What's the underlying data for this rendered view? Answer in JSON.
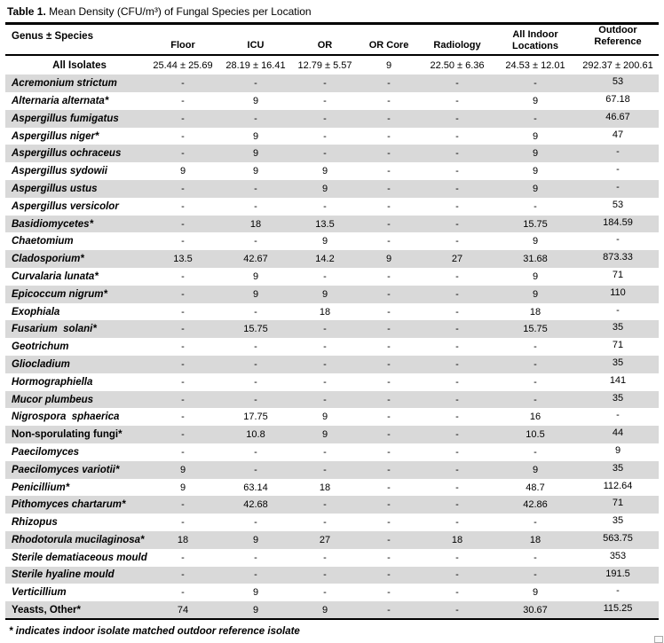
{
  "title": {
    "label": "Table 1.",
    "text": " Mean Density (CFU/m³) of Fungal Species per Location"
  },
  "colors": {
    "stripe": "#D9D9D9",
    "rule": "#000000"
  },
  "table": {
    "columns": [
      "Genus ± Species",
      "Floor",
      "ICU",
      "OR",
      "OR Core",
      "Radiology",
      "All Indoor Locations",
      "Outdoor Reference"
    ],
    "summary_row": {
      "name": "All Isolates",
      "values": [
        "25.44 ± 25.69",
        "28.19 ± 16.41",
        "12.79 ± 5.57",
        "9",
        "22.50 ± 6.36",
        "24.53 ± 12.01",
        "292.37 ± 200.61"
      ]
    },
    "rows": [
      {
        "name": "Acremonium strictum",
        "italic": true,
        "values": [
          "-",
          "-",
          "-",
          "-",
          "-",
          "-",
          "53"
        ]
      },
      {
        "name": "Alternaria alternata*",
        "italic": true,
        "values": [
          "-",
          "9",
          "-",
          "-",
          "-",
          "9",
          "67.18"
        ]
      },
      {
        "name": "Aspergillus fumigatus",
        "italic": true,
        "values": [
          "-",
          "-",
          "-",
          "-",
          "-",
          "-",
          "46.67"
        ]
      },
      {
        "name": "Aspergillus niger*",
        "italic": true,
        "values": [
          "-",
          "9",
          "-",
          "-",
          "-",
          "9",
          "47"
        ]
      },
      {
        "name": "Aspergillus ochraceus",
        "italic": true,
        "values": [
          "-",
          "9",
          "-",
          "-",
          "-",
          "9",
          "-"
        ]
      },
      {
        "name": "Aspergillus sydowii",
        "italic": true,
        "values": [
          "9",
          "9",
          "9",
          "-",
          "-",
          "9",
          "-"
        ]
      },
      {
        "name": "Aspergillus ustus",
        "italic": true,
        "values": [
          "-",
          "-",
          "9",
          "-",
          "-",
          "9",
          "-"
        ]
      },
      {
        "name": "Aspergillus versicolor",
        "italic": true,
        "values": [
          "-",
          "-",
          "-",
          "-",
          "-",
          "-",
          "53"
        ]
      },
      {
        "name": "Basidiomycetes*",
        "italic": true,
        "values": [
          "-",
          "18",
          "13.5",
          "-",
          "-",
          "15.75",
          "184.59"
        ]
      },
      {
        "name": "Chaetomium",
        "italic": true,
        "values": [
          "-",
          "-",
          "9",
          "-",
          "-",
          "9",
          "-"
        ]
      },
      {
        "name": "Cladosporium*",
        "italic": true,
        "values": [
          "13.5",
          "42.67",
          "14.2",
          "9",
          "27",
          "31.68",
          "873.33"
        ]
      },
      {
        "name": "Curvalaria lunata*",
        "italic": true,
        "values": [
          "-",
          "9",
          "-",
          "-",
          "-",
          "9",
          "71"
        ]
      },
      {
        "name": "Epicoccum nigrum*",
        "italic": true,
        "values": [
          "-",
          "9",
          "9",
          "-",
          "-",
          "9",
          "110"
        ]
      },
      {
        "name": "Exophiala",
        "italic": true,
        "values": [
          "-",
          "-",
          "18",
          "-",
          "-",
          "18",
          "-"
        ]
      },
      {
        "name": "Fusarium  solani*",
        "italic": true,
        "values": [
          "-",
          "15.75",
          "-",
          "-",
          "-",
          "15.75",
          "35"
        ]
      },
      {
        "name": "Geotrichum",
        "italic": true,
        "values": [
          "-",
          "-",
          "-",
          "-",
          "-",
          "-",
          "71"
        ]
      },
      {
        "name": "Gliocladium",
        "italic": true,
        "values": [
          "-",
          "-",
          "-",
          "-",
          "-",
          "-",
          "35"
        ]
      },
      {
        "name": "Hormographiella",
        "italic": true,
        "values": [
          "-",
          "-",
          "-",
          "-",
          "-",
          "-",
          "141"
        ]
      },
      {
        "name": "Mucor plumbeus",
        "italic": true,
        "values": [
          "-",
          "-",
          "-",
          "-",
          "-",
          "-",
          "35"
        ]
      },
      {
        "name": "Nigrospora  sphaerica",
        "italic": true,
        "values": [
          "-",
          "17.75",
          "9",
          "-",
          "-",
          "16",
          "-"
        ]
      },
      {
        "name": "Non-sporulating fungi*",
        "italic": false,
        "values": [
          "-",
          "10.8",
          "9",
          "-",
          "-",
          "10.5",
          "44"
        ]
      },
      {
        "name": "Paecilomyces",
        "italic": true,
        "values": [
          "-",
          "-",
          "-",
          "-",
          "-",
          "-",
          "9"
        ]
      },
      {
        "name": "Paecilomyces variotii*",
        "italic": true,
        "values": [
          "9",
          "-",
          "-",
          "-",
          "-",
          "9",
          "35"
        ]
      },
      {
        "name": "Penicillium*",
        "italic": true,
        "values": [
          "9",
          "63.14",
          "18",
          "-",
          "-",
          "48.7",
          "112.64"
        ]
      },
      {
        "name": "Pithomyces chartarum*",
        "italic": true,
        "values": [
          "-",
          "42.68",
          "-",
          "-",
          "-",
          "42.86",
          "71"
        ]
      },
      {
        "name": "Rhizopus",
        "italic": true,
        "values": [
          "-",
          "-",
          "-",
          "-",
          "-",
          "-",
          "35"
        ]
      },
      {
        "name": "Rhodotorula mucilaginosa*",
        "italic": true,
        "values": [
          "18",
          "9",
          "27",
          "-",
          "18",
          "18",
          "563.75"
        ]
      },
      {
        "name": "Sterile dematiaceous mould",
        "italic": true,
        "values": [
          "-",
          "-",
          "-",
          "-",
          "-",
          "-",
          "353"
        ]
      },
      {
        "name": "Sterile hyaline mould",
        "italic": true,
        "values": [
          "-",
          "-",
          "-",
          "-",
          "-",
          "-",
          "191.5"
        ]
      },
      {
        "name": "Verticillium",
        "italic": true,
        "values": [
          "-",
          "9",
          "-",
          "-",
          "-",
          "9",
          "-"
        ]
      },
      {
        "name": "Yeasts, Other*",
        "italic": false,
        "values": [
          "74",
          "9",
          "9",
          "-",
          "-",
          "30.67",
          "115.25"
        ]
      }
    ]
  },
  "footnote": "* indicates indoor isolate matched outdoor reference isolate"
}
